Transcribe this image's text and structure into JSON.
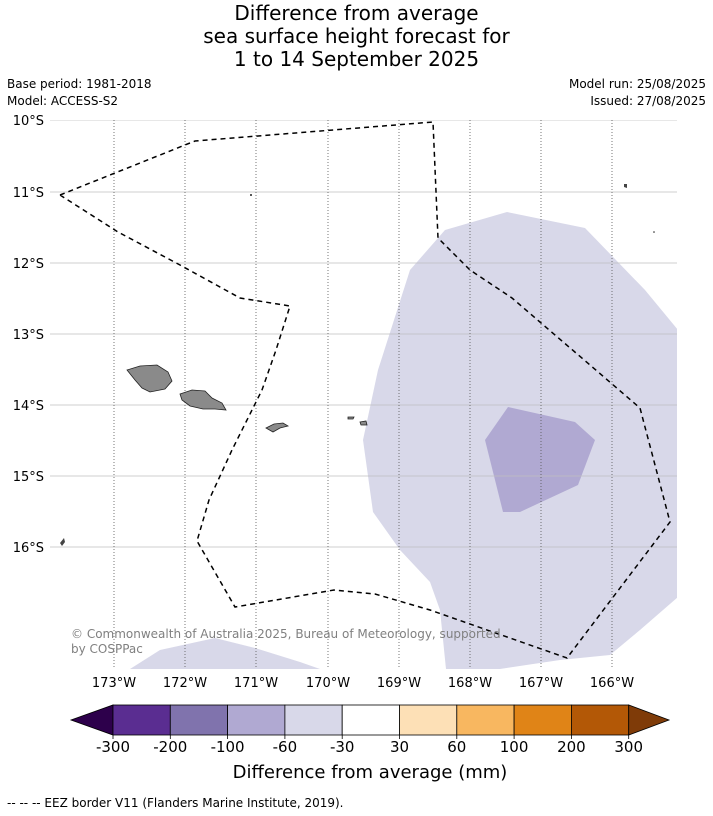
{
  "title": {
    "line1": "Difference from average",
    "line2": "sea surface height forecast for",
    "line3": "1 to 14 September 2025"
  },
  "meta": {
    "base_period": "Base period: 1981-2018",
    "model": "Model: ACCESS-S2",
    "model_run": "Model run: 25/08/2025",
    "issued": "Issued: 27/08/2025"
  },
  "map": {
    "lat_labels": [
      "10°S",
      "11°S",
      "12°S",
      "13°S",
      "14°S",
      "15°S",
      "16°S"
    ],
    "lon_labels": [
      "173°W",
      "172°W",
      "171°W",
      "170°W",
      "169°W",
      "168°W",
      "167°W",
      "166°W"
    ],
    "copyright": "© Commonwealth of Australia 2025, Bureau of Meteorology, supported",
    "copyright2": "by COSPPac",
    "colors": {
      "ocean": "#ffffff",
      "band_light": "#d8d8e9",
      "band_medium": "#b0a9d2",
      "land": "#8a8a8a",
      "grid": "#bfbfbf"
    }
  },
  "colorbar": {
    "label": "Difference from average (mm)",
    "ticks": [
      "-300",
      "-200",
      "-100",
      "-60",
      "-30",
      "30",
      "60",
      "100",
      "200",
      "300"
    ],
    "colors": [
      "#2d004b",
      "#5a2d91",
      "#8073ad",
      "#b0a9d2",
      "#d8d8e9",
      "#ffffff",
      "#fde0b6",
      "#f8b760",
      "#e08417",
      "#b35806",
      "#7f3b08"
    ]
  },
  "footnote": "-- -- -- EEZ border V11 (Flanders Marine Institute, 2019)."
}
